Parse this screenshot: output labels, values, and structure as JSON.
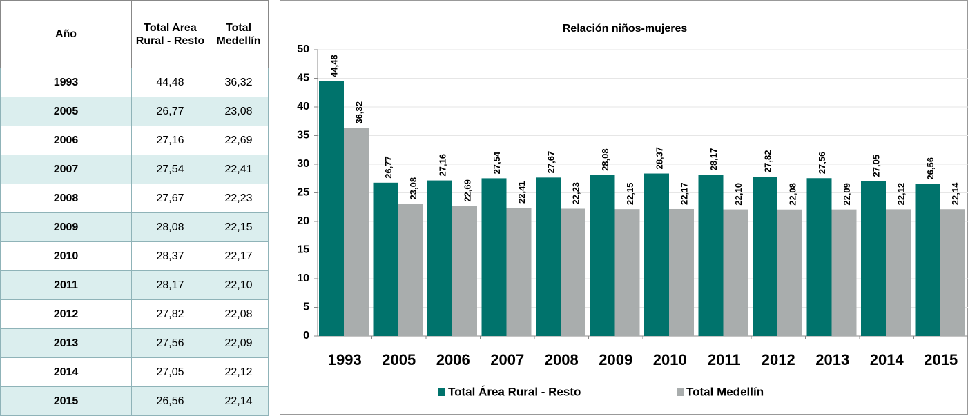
{
  "table": {
    "header": [
      "Año",
      "Total Area Rural - Resto",
      "Total Medellín"
    ],
    "rows": [
      [
        "1993",
        "44,48",
        "36,32"
      ],
      [
        "2005",
        "26,77",
        "23,08"
      ],
      [
        "2006",
        "27,16",
        "22,69"
      ],
      [
        "2007",
        "27,54",
        "22,41"
      ],
      [
        "2008",
        "27,67",
        "22,23"
      ],
      [
        "2009",
        "28,08",
        "22,15"
      ],
      [
        "2010",
        "28,37",
        "22,17"
      ],
      [
        "2011",
        "28,17",
        "22,10"
      ],
      [
        "2012",
        "27,82",
        "22,08"
      ],
      [
        "2013",
        "27,56",
        "22,09"
      ],
      [
        "2014",
        "27,05",
        "22,12"
      ],
      [
        "2015",
        "26,56",
        "22,14"
      ]
    ]
  },
  "chart_data": {
    "type": "bar",
    "title": "Relación niños-mujeres",
    "categories": [
      "1993",
      "2005",
      "2006",
      "2007",
      "2008",
      "2009",
      "2010",
      "2011",
      "2012",
      "2013",
      "2014",
      "2015"
    ],
    "series": [
      {
        "name": "Total Área Rural - Resto",
        "color": "#00736c",
        "values": [
          44.48,
          26.77,
          27.16,
          27.54,
          27.67,
          28.08,
          28.37,
          28.17,
          27.82,
          27.56,
          27.05,
          26.56
        ],
        "value_labels": [
          "44,48",
          "26,77",
          "27,16",
          "27,54",
          "27,67",
          "28,08",
          "28,37",
          "28,17",
          "27,82",
          "27,56",
          "27,05",
          "26,56"
        ]
      },
      {
        "name": "Total Medellín",
        "color": "#a9adad",
        "values": [
          36.32,
          23.08,
          22.69,
          22.41,
          22.23,
          22.15,
          22.17,
          22.1,
          22.08,
          22.09,
          22.12,
          22.14
        ],
        "value_labels": [
          "36,32",
          "23,08",
          "22,69",
          "22,41",
          "22,23",
          "22,15",
          "22,17",
          "22,10",
          "22,08",
          "22,09",
          "22,12",
          "22,14"
        ]
      }
    ],
    "ylim": [
      0,
      50
    ],
    "yticks": [
      0,
      5,
      10,
      15,
      20,
      25,
      30,
      35,
      40,
      45,
      50
    ],
    "grid": true,
    "legend": "bottom"
  }
}
